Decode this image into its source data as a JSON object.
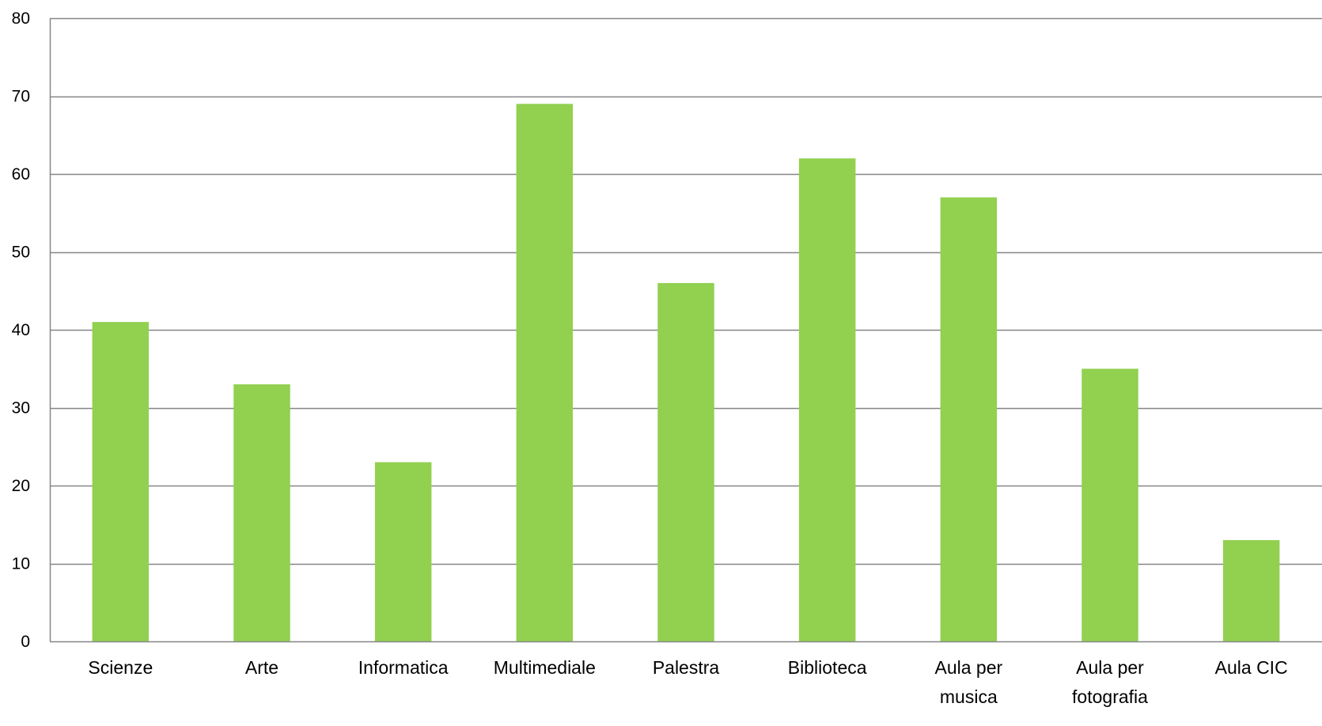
{
  "chart_data": {
    "type": "bar",
    "title": "",
    "xlabel": "",
    "ylabel": "",
    "categories": [
      [
        "Scienze"
      ],
      [
        "Arte"
      ],
      [
        "Informatica"
      ],
      [
        "Multimediale"
      ],
      [
        "Palestra"
      ],
      [
        "Biblioteca"
      ],
      [
        "Aula per",
        "musica"
      ],
      [
        "Aula per",
        "fotografia"
      ],
      [
        "Aula CIC"
      ]
    ],
    "values": [
      41,
      33,
      23,
      69,
      46,
      62,
      57,
      35,
      13
    ],
    "ylim": [
      0,
      80
    ],
    "yticks": [
      "0",
      "10",
      "20",
      "30",
      "40",
      "50",
      "60",
      "70",
      "80"
    ],
    "grid": true,
    "legend": "none",
    "colors": {
      "bar": "#92d050",
      "grid": "#868686",
      "axis": "#868686"
    }
  }
}
